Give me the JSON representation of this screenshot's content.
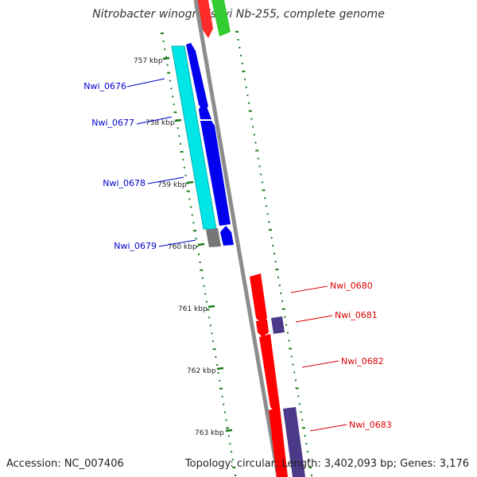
{
  "header": {
    "title": "Nitrobacter winogradskyi Nb-255, complete genome"
  },
  "footer": {
    "accession": "Accession: NC_007406",
    "topology": "Topology: circular; Length: 3,402,093 bp; Genes: 3,176"
  },
  "ticks": [
    "757 kbp",
    "758 kbp",
    "759 kbp",
    "760 kbp",
    "761 kbp",
    "762 kbp",
    "763 kbp"
  ],
  "genes": [
    {
      "id": "Nwi_0676",
      "strand": "minus"
    },
    {
      "id": "Nwi_0677",
      "strand": "minus"
    },
    {
      "id": "Nwi_0678",
      "strand": "minus"
    },
    {
      "id": "Nwi_0679",
      "strand": "minus"
    },
    {
      "id": "Nwi_0680",
      "strand": "plus"
    },
    {
      "id": "Nwi_0681",
      "strand": "plus"
    },
    {
      "id": "Nwi_0682",
      "strand": "plus"
    },
    {
      "id": "Nwi_0683",
      "strand": "plus"
    }
  ],
  "colors": {
    "backbone": "#888888",
    "minus_label": "#0000cc",
    "plus_label": "#dd0000",
    "cds_minus": "#0000ee",
    "cds_plus": "#ff0000",
    "gene_minus": "#00e5e5",
    "gene_plus": "#4b3a8a",
    "unknown": "#777777",
    "gc_ticks": "#1a7a1a",
    "top_green": "#33cc33"
  }
}
